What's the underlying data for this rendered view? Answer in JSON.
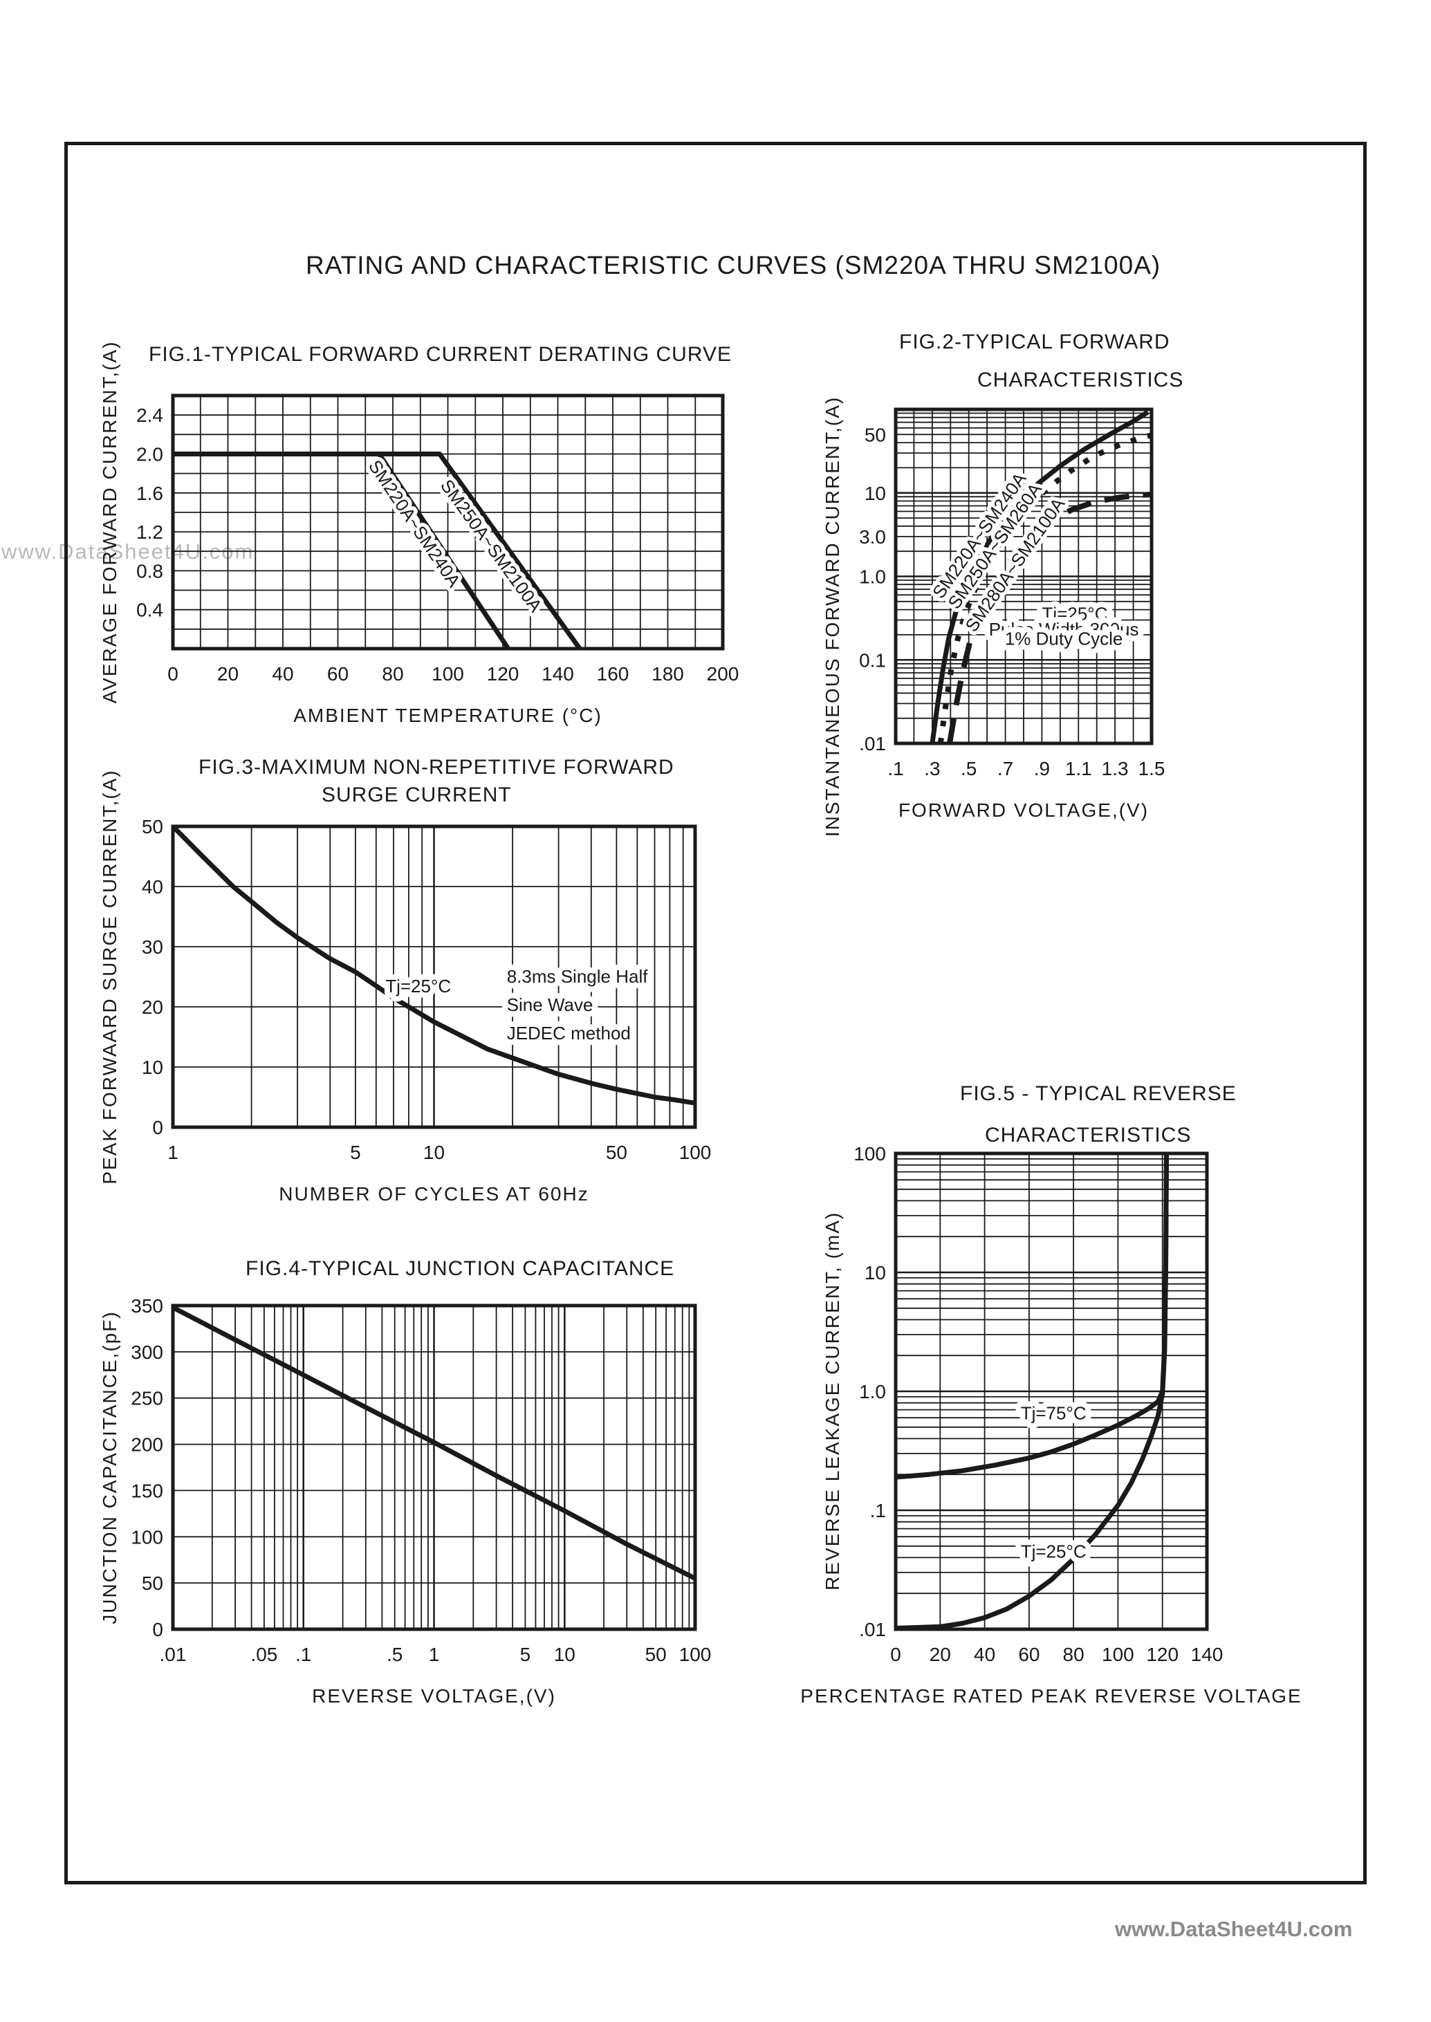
{
  "page": {
    "main_title": "RATING AND CHARACTERISTIC CURVES (SM220A THRU SM2100A)",
    "watermark": "www.DataSheet4U.com",
    "footer": "www.DataSheet4U.com",
    "ink_color": "#1a1a1a",
    "watermark_color": "#b9b9b9",
    "footer_color": "#8a8a8a"
  },
  "chart_data": [
    {
      "id": "fig1",
      "type": "line",
      "title_lines": [
        "FIG.1-TYPICAL FORWARD CURRENT DERATING CURVE"
      ],
      "xlabel": "AMBIENT TEMPERATURE (°C)",
      "ylabel": "AVERAGE FORWARD CURRENT,(A)",
      "x_axis": {
        "scale": "linear",
        "min": 0,
        "max": 200,
        "grid_step": 10,
        "ticks": [
          [
            0,
            "0"
          ],
          [
            20,
            "20"
          ],
          [
            40,
            "40"
          ],
          [
            60,
            "60"
          ],
          [
            80,
            "80"
          ],
          [
            100,
            "100"
          ],
          [
            120,
            "120"
          ],
          [
            140,
            "140"
          ],
          [
            160,
            "160"
          ],
          [
            180,
            "180"
          ],
          [
            200,
            "200"
          ]
        ]
      },
      "y_axis": {
        "scale": "linear",
        "min": 0,
        "max": 2.6,
        "grid_step": 0.2,
        "ticks": [
          [
            0.4,
            "0.4"
          ],
          [
            0.8,
            "0.8"
          ],
          [
            1.2,
            "1.2"
          ],
          [
            1.6,
            "1.6"
          ],
          [
            2.0,
            "2.0"
          ],
          [
            2.4,
            "2.4"
          ]
        ]
      },
      "series": [
        {
          "name": "SM220A~SM240A",
          "style": "solid",
          "points": [
            [
              0,
              2
            ],
            [
              75,
              2
            ],
            [
              122,
              0
            ]
          ]
        },
        {
          "name": "SM250A~SM2100A",
          "style": "solid",
          "points": [
            [
              0,
              2
            ],
            [
              97,
              2
            ],
            [
              148,
              0
            ]
          ]
        }
      ],
      "curve_labels": [
        {
          "text": "SM220A~SM240A",
          "x": 86,
          "y": 1.25,
          "angle": 56
        },
        {
          "text": "SM250A~SM2100A",
          "x": 114,
          "y": 1.02,
          "angle": 54
        }
      ],
      "annotations": []
    },
    {
      "id": "fig2",
      "type": "line",
      "title_lines": [
        "FIG.2-TYPICAL FORWARD",
        "CHARACTERISTICS"
      ],
      "xlabel": "FORWARD VOLTAGE,(V)",
      "ylabel": "INSTANTANEOUS FORWARD CURRENT,(A)",
      "x_axis": {
        "scale": "linear",
        "min": 0.1,
        "max": 1.5,
        "grid_step": 0.1,
        "ticks": [
          [
            0.1,
            ".1"
          ],
          [
            0.3,
            ".3"
          ],
          [
            0.5,
            ".5"
          ],
          [
            0.7,
            ".7"
          ],
          [
            0.9,
            ".9"
          ],
          [
            1.1,
            "1.1"
          ],
          [
            1.3,
            "1.3"
          ],
          [
            1.5,
            "1.5"
          ]
        ]
      },
      "y_axis": {
        "scale": "log",
        "min": 0.01,
        "max": 100,
        "ticks": [
          [
            50,
            "50"
          ],
          [
            10,
            "10"
          ],
          [
            3,
            "3.0"
          ],
          [
            1,
            "1.0"
          ],
          [
            0.1,
            "0.1"
          ],
          [
            0.01,
            ".01"
          ]
        ]
      },
      "series": [
        {
          "name": "SM220A~SM240A",
          "style": "solid",
          "points": [
            [
              0.3,
              0.01
            ],
            [
              0.33,
              0.03
            ],
            [
              0.36,
              0.08
            ],
            [
              0.39,
              0.18
            ],
            [
              0.43,
              0.38
            ],
            [
              0.48,
              0.75
            ],
            [
              0.54,
              1.4
            ],
            [
              0.61,
              2.6
            ],
            [
              0.69,
              4.8
            ],
            [
              0.78,
              8.2
            ],
            [
              0.88,
              13
            ],
            [
              1.0,
              21
            ],
            [
              1.13,
              33
            ],
            [
              1.27,
              50
            ],
            [
              1.4,
              72
            ],
            [
              1.48,
              93
            ]
          ]
        },
        {
          "name": "SM250A~SM260A",
          "style": "dotted",
          "points": [
            [
              0.345,
              0.01
            ],
            [
              0.375,
              0.03
            ],
            [
              0.405,
              0.08
            ],
            [
              0.44,
              0.18
            ],
            [
              0.485,
              0.38
            ],
            [
              0.54,
              0.75
            ],
            [
              0.6,
              1.4
            ],
            [
              0.675,
              2.6
            ],
            [
              0.755,
              4.6
            ],
            [
              0.845,
              7.6
            ],
            [
              0.945,
              12
            ],
            [
              1.06,
              18.5
            ],
            [
              1.19,
              28
            ],
            [
              1.33,
              38
            ],
            [
              1.46,
              47
            ],
            [
              1.5,
              49
            ]
          ]
        },
        {
          "name": "SM280A~SM2100A",
          "style": "dashed",
          "points": [
            [
              0.395,
              0.01
            ],
            [
              0.43,
              0.028
            ],
            [
              0.465,
              0.07
            ],
            [
              0.505,
              0.16
            ],
            [
              0.555,
              0.33
            ],
            [
              0.615,
              0.62
            ],
            [
              0.685,
              1.15
            ],
            [
              0.765,
              2.0
            ],
            [
              0.855,
              3.2
            ],
            [
              0.955,
              4.8
            ],
            [
              1.065,
              6.3
            ],
            [
              1.19,
              7.8
            ],
            [
              1.32,
              8.8
            ],
            [
              1.44,
              9.4
            ],
            [
              1.5,
              9.6
            ]
          ]
        }
      ],
      "curve_labels": [
        {
          "text": "SM220A~SM240A",
          "x": 0.585,
          "y": 2.8,
          "angle": -55
        },
        {
          "text": "SM250A~SM260A",
          "x": 0.67,
          "y": 2.1,
          "angle": -55
        },
        {
          "text": "SM280A~SM2100A",
          "x": 0.78,
          "y": 1.25,
          "angle": -55
        }
      ],
      "annotations": [
        {
          "text": "Tj=25°C",
          "x": 1.08,
          "y": 0.3
        },
        {
          "text": "Pulse Width 300us",
          "x": 1.02,
          "y": 0.195
        },
        {
          "text": "1% Duty Cycle",
          "x": 1.02,
          "y": 0.152
        }
      ]
    },
    {
      "id": "fig3",
      "type": "line",
      "title_lines": [
        "FIG.3-MAXIMUM NON-REPETITIVE FORWARD",
        "SURGE CURRENT"
      ],
      "xlabel": "NUMBER OF CYCLES AT 60Hz",
      "ylabel": "PEAK FORWAARD SURGE CURRENT,(A)",
      "x_axis": {
        "scale": "log",
        "min": 1,
        "max": 100,
        "ticks": [
          [
            1,
            "1"
          ],
          [
            5,
            "5"
          ],
          [
            10,
            "10"
          ],
          [
            50,
            "50"
          ],
          [
            100,
            "100"
          ]
        ]
      },
      "y_axis": {
        "scale": "linear",
        "min": 0,
        "max": 50,
        "grid_step": 10,
        "ticks": [
          [
            0,
            "0"
          ],
          [
            10,
            "10"
          ],
          [
            20,
            "20"
          ],
          [
            30,
            "30"
          ],
          [
            40,
            "40"
          ],
          [
            50,
            "50"
          ]
        ]
      },
      "series": [
        {
          "name": "surge-current",
          "style": "solid",
          "points": [
            [
              1,
              50
            ],
            [
              1.3,
              45
            ],
            [
              1.7,
              40
            ],
            [
              2,
              37.5
            ],
            [
              2.5,
              34
            ],
            [
              3,
              31.5
            ],
            [
              4,
              28
            ],
            [
              5,
              25.8
            ],
            [
              6,
              23.5
            ],
            [
              7,
              21.5
            ],
            [
              8,
              20
            ],
            [
              10,
              17.5
            ],
            [
              13,
              15
            ],
            [
              16,
              13
            ],
            [
              20,
              11.5
            ],
            [
              25,
              10
            ],
            [
              30,
              8.8
            ],
            [
              40,
              7.3
            ],
            [
              50,
              6.3
            ],
            [
              60,
              5.6
            ],
            [
              70,
              5
            ],
            [
              85,
              4.5
            ],
            [
              100,
              4
            ]
          ]
        }
      ],
      "curve_labels": [],
      "annotations": [
        {
          "text": "Tj=25°C",
          "x": 8.7,
          "y": 22.4
        },
        {
          "text": "8.3ms Single Half",
          "x": 19,
          "y": 24.0,
          "anchor": "start"
        },
        {
          "text": "Sine Wave",
          "x": 19,
          "y": 19.3,
          "anchor": "start"
        },
        {
          "text": "JEDEC method",
          "x": 19,
          "y": 14.6,
          "anchor": "start"
        }
      ]
    },
    {
      "id": "fig4",
      "type": "line",
      "title_lines": [
        "FIG.4-TYPICAL JUNCTION CAPACITANCE"
      ],
      "xlabel": "REVERSE VOLTAGE,(V)",
      "ylabel": "JUNCTION CAPACITANCE,(pF)",
      "x_axis": {
        "scale": "log",
        "min": 0.01,
        "max": 100,
        "ticks": [
          [
            0.01,
            ".01"
          ],
          [
            0.05,
            ".05"
          ],
          [
            0.1,
            ".1"
          ],
          [
            0.5,
            ".5"
          ],
          [
            1,
            "1"
          ],
          [
            5,
            "5"
          ],
          [
            10,
            "10"
          ],
          [
            50,
            "50"
          ],
          [
            100,
            "100"
          ]
        ]
      },
      "y_axis": {
        "scale": "linear",
        "min": 0,
        "max": 350,
        "grid_step": 50,
        "ticks": [
          [
            0,
            "0"
          ],
          [
            50,
            "50"
          ],
          [
            100,
            "100"
          ],
          [
            150,
            "150"
          ],
          [
            200,
            "200"
          ],
          [
            250,
            "250"
          ],
          [
            300,
            "300"
          ],
          [
            350,
            "350"
          ]
        ]
      },
      "series": [
        {
          "name": "junction-capacitance",
          "style": "solid",
          "points": [
            [
              0.01,
              348
            ],
            [
              0.03,
              313
            ],
            [
              0.1,
              275
            ],
            [
              0.3,
              240
            ],
            [
              1,
              202
            ],
            [
              3,
              166
            ],
            [
              10,
              128
            ],
            [
              30,
              92
            ],
            [
              100,
              55
            ]
          ]
        }
      ],
      "curve_labels": [],
      "annotations": []
    },
    {
      "id": "fig5",
      "type": "line",
      "title_lines": [
        "FIG.5 - TYPICAL REVERSE",
        "CHARACTERISTICS"
      ],
      "xlabel": "PERCENTAGE RATED PEAK REVERSE VOLTAGE",
      "ylabel": "REVERSE LEAKAGE CURRENT, (mA)",
      "x_axis": {
        "scale": "linear",
        "min": 0,
        "max": 140,
        "grid_step": 20,
        "ticks": [
          [
            0,
            "0"
          ],
          [
            20,
            "20"
          ],
          [
            40,
            "40"
          ],
          [
            60,
            "60"
          ],
          [
            80,
            "80"
          ],
          [
            100,
            "100"
          ],
          [
            120,
            "120"
          ],
          [
            140,
            "140"
          ]
        ]
      },
      "y_axis": {
        "scale": "log",
        "min": 0.01,
        "max": 100,
        "ticks": [
          [
            100,
            "100"
          ],
          [
            10,
            "10"
          ],
          [
            1,
            "1.0"
          ],
          [
            0.1,
            ".1"
          ],
          [
            0.01,
            ".01"
          ]
        ]
      },
      "series": [
        {
          "name": "Tj=75C",
          "style": "solid",
          "points": [
            [
              0,
              0.19
            ],
            [
              15,
              0.2
            ],
            [
              30,
              0.215
            ],
            [
              45,
              0.24
            ],
            [
              60,
              0.275
            ],
            [
              70,
              0.31
            ],
            [
              80,
              0.36
            ],
            [
              90,
              0.43
            ],
            [
              100,
              0.52
            ],
            [
              108,
              0.62
            ],
            [
              114,
              0.72
            ],
            [
              118,
              0.82
            ],
            [
              120,
              1.0
            ],
            [
              121,
              2.5
            ],
            [
              121.5,
              12
            ],
            [
              121.8,
              100
            ]
          ]
        },
        {
          "name": "Tj=25C",
          "style": "solid",
          "points": [
            [
              0,
              0.0102
            ],
            [
              20,
              0.0105
            ],
            [
              30,
              0.0112
            ],
            [
              40,
              0.0125
            ],
            [
              50,
              0.0148
            ],
            [
              60,
              0.019
            ],
            [
              70,
              0.026
            ],
            [
              80,
              0.039
            ],
            [
              90,
              0.063
            ],
            [
              100,
              0.11
            ],
            [
              106,
              0.17
            ],
            [
              111,
              0.27
            ],
            [
              115,
              0.42
            ],
            [
              118,
              0.62
            ],
            [
              120,
              0.95
            ],
            [
              121,
              2.2
            ],
            [
              121.5,
              11
            ],
            [
              121.8,
              100
            ]
          ]
        }
      ],
      "curve_labels": [],
      "annotations": [
        {
          "text": "Tj=75°C",
          "x": 71,
          "y": 0.58
        },
        {
          "text": "Tj=25°C",
          "x": 71,
          "y": 0.04
        }
      ]
    }
  ]
}
